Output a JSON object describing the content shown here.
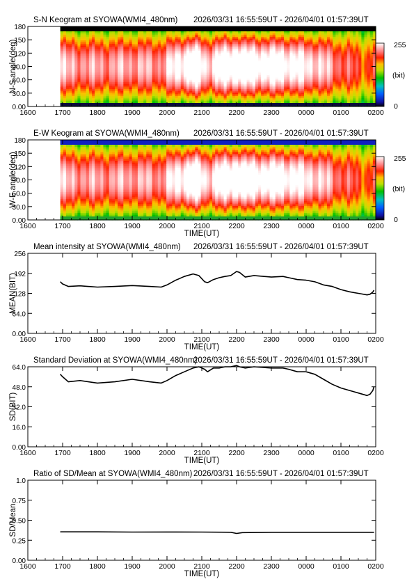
{
  "page": {
    "background": "#ffffff",
    "ink": "#000000"
  },
  "chart_data": [
    {
      "type": "heatmap",
      "title": "S-N Keogram at SYOWA(WMI4_480nm)",
      "time_range": "2026/03/31 16:55:59UT - 2026/04/01 01:57:39UT",
      "xlabel": "",
      "ylabel": "N-S angle(deg)",
      "xticks": [
        "1600",
        "1700",
        "1800",
        "1900",
        "2000",
        "2100",
        "2200",
        "2300",
        "0000",
        "0100",
        "0200"
      ],
      "yticks": [
        "0.00",
        "30.0",
        "60.0",
        "90.0",
        "120",
        "150",
        "180"
      ],
      "ylim": [
        0,
        180
      ],
      "data_start": "1656",
      "colorbar": {
        "max_label": "255",
        "unit_label": "(bit)",
        "min_label": "0"
      },
      "edge_band": {
        "top_color": "#000000",
        "bottom_color": "#0a0a3a"
      }
    },
    {
      "type": "heatmap",
      "title": "E-W Keogram at SYOWA(WMI4_480nm)",
      "time_range": "2026/03/31 16:55:59UT - 2026/04/01 01:57:39UT",
      "xlabel": "TIME(UT)",
      "ylabel": "W-E angle(deg)",
      "xticks": [
        "1600",
        "1700",
        "1800",
        "1900",
        "2000",
        "2100",
        "2200",
        "2300",
        "0000",
        "0100",
        "0200"
      ],
      "yticks": [
        "0.00",
        "30.0",
        "60.0",
        "90.0",
        "120",
        "150",
        "180"
      ],
      "ylim": [
        0,
        180
      ],
      "data_start": "1656",
      "colorbar": {
        "max_label": "255",
        "unit_label": "(bit)",
        "min_label": "0"
      },
      "edge_band": {
        "top_color": "#1020c0",
        "bottom_color": "#20a030"
      }
    },
    {
      "type": "line",
      "title": "Mean intensity at SYOWA(WMI4_480nm)",
      "time_range": "2026/03/31 16:55:59UT - 2026/04/01 01:57:39UT",
      "xlabel": "TIME(UT)",
      "ylabel": "MEAN(BIT)",
      "xticks": [
        "1600",
        "1700",
        "1800",
        "1900",
        "2000",
        "2100",
        "2200",
        "2300",
        "0000",
        "0100",
        "0200"
      ],
      "yticks": [
        "0.00",
        "64.0",
        "128",
        "192",
        "256"
      ],
      "ylim": [
        0,
        256
      ],
      "x": [
        "1656",
        "1700",
        "1710",
        "1730",
        "1800",
        "1830",
        "1900",
        "1930",
        "1950",
        "2000",
        "2015",
        "2030",
        "2045",
        "2055",
        "2105",
        "2110",
        "2120",
        "2130",
        "2140",
        "2150",
        "2200",
        "2205",
        "2215",
        "2230",
        "2300",
        "2320",
        "2330",
        "2345",
        "0000",
        "0015",
        "0030",
        "0045",
        "0100",
        "0115",
        "0130",
        "0145",
        "0150",
        "0155",
        "0157"
      ],
      "y": [
        165,
        158,
        150,
        152,
        148,
        150,
        153,
        150,
        148,
        155,
        170,
        182,
        190,
        185,
        165,
        162,
        172,
        178,
        182,
        185,
        198,
        195,
        180,
        185,
        180,
        182,
        178,
        172,
        170,
        165,
        155,
        150,
        140,
        133,
        128,
        123,
        125,
        132,
        138
      ]
    },
    {
      "type": "line",
      "title": "Standard Deviation at SYOWA(WMI4_480nm)",
      "time_range": "2026/03/31 16:55:59UT - 2026/04/01 01:57:39UT",
      "xlabel": "TIME(UT)",
      "ylabel": "SD(BIT)",
      "xticks": [
        "1600",
        "1700",
        "1800",
        "1900",
        "2000",
        "2100",
        "2200",
        "2300",
        "0000",
        "0100",
        "0200"
      ],
      "yticks": [
        "0.00",
        "16.0",
        "32.0",
        "48.0",
        "64.0"
      ],
      "ylim": [
        0,
        64
      ],
      "x": [
        "1656",
        "1700",
        "1710",
        "1730",
        "1800",
        "1830",
        "1900",
        "1930",
        "1950",
        "2000",
        "2015",
        "2030",
        "2045",
        "2055",
        "2105",
        "2110",
        "2120",
        "2130",
        "2140",
        "2150",
        "2200",
        "2205",
        "2215",
        "2230",
        "2300",
        "2320",
        "2330",
        "2345",
        "0000",
        "0015",
        "0030",
        "0045",
        "0100",
        "0115",
        "0130",
        "0145",
        "0150",
        "0155",
        "0157"
      ],
      "y": [
        58,
        56,
        52,
        53,
        51,
        52,
        54,
        52,
        51,
        53,
        57,
        60,
        63,
        64,
        62,
        60,
        63,
        63,
        64,
        64,
        65,
        64,
        63,
        64,
        63,
        63,
        62,
        60,
        60,
        58,
        54,
        50,
        47,
        45,
        43,
        41,
        42,
        45,
        48
      ]
    },
    {
      "type": "line",
      "title": "Ratio of SD/Mean at SYOWA(WMI4_480nm)",
      "time_range": "2026/03/31 16:55:59UT - 2026/04/01 01:57:39UT",
      "xlabel": "TIME(UT)",
      "ylabel": "SD/Mean",
      "xticks": [
        "1600",
        "1700",
        "1800",
        "1900",
        "2000",
        "2100",
        "2200",
        "2300",
        "0000",
        "0100",
        "0200"
      ],
      "yticks": [
        "0.00",
        "0.25",
        "0.50",
        "0.75",
        "1.0"
      ],
      "ylim": [
        0,
        1.0
      ],
      "x": [
        "1656",
        "1700",
        "1800",
        "1900",
        "2000",
        "2100",
        "2150",
        "2200",
        "2210",
        "2300",
        "0000",
        "0100",
        "0157"
      ],
      "y": [
        0.355,
        0.355,
        0.355,
        0.352,
        0.353,
        0.352,
        0.35,
        0.335,
        0.345,
        0.35,
        0.35,
        0.35,
        0.35
      ]
    }
  ]
}
